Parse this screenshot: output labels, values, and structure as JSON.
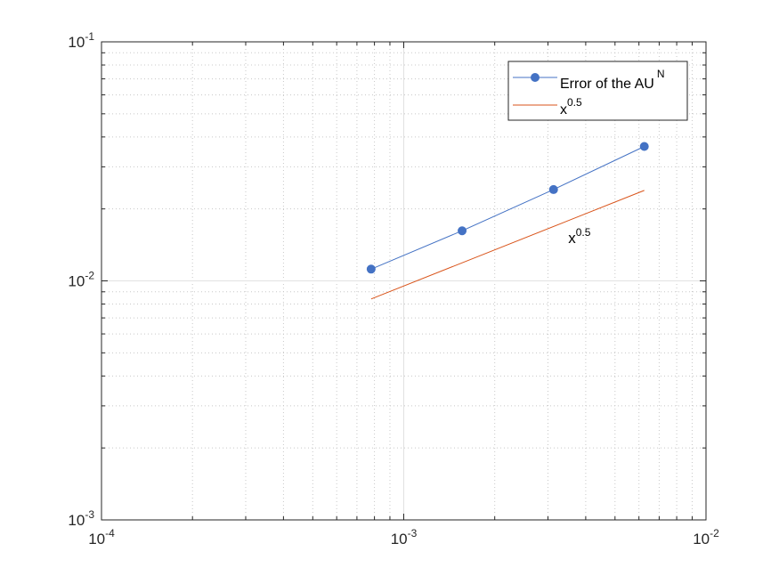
{
  "chart_data": {
    "type": "line",
    "title": "",
    "xlabel": "",
    "ylabel": "",
    "x_scale": "log",
    "y_scale": "log",
    "xlim": [
      0.0001,
      0.01
    ],
    "ylim": [
      0.001,
      0.1
    ],
    "grid": true,
    "minor_grid": true,
    "legend_position": "top-right",
    "x_ticks": [
      {
        "base": "10",
        "exp": "-4",
        "value": 0.0001
      },
      {
        "base": "10",
        "exp": "-3",
        "value": 0.001
      },
      {
        "base": "10",
        "exp": "-2",
        "value": 0.01
      }
    ],
    "y_ticks": [
      {
        "base": "10",
        "exp": "-3",
        "value": 0.001
      },
      {
        "base": "10",
        "exp": "-2",
        "value": 0.01
      },
      {
        "base": "10",
        "exp": "-1",
        "value": 0.1
      }
    ],
    "series": [
      {
        "name": "Error of the AU",
        "name_superscript": "N",
        "color": "#4472C4",
        "marker": "circle",
        "x": [
          0.00078,
          0.00156,
          0.00313,
          0.00625
        ],
        "y": [
          0.0112,
          0.0162,
          0.0241,
          0.0365
        ]
      },
      {
        "name": "x",
        "name_superscript": "0.5",
        "color": "#D95319",
        "marker": "none",
        "x": [
          0.00078,
          0.00625
        ],
        "y": [
          0.0084,
          0.0239
        ]
      }
    ],
    "annotations": [
      {
        "text": "x",
        "superscript": "0.5",
        "x": 0.0035,
        "y": 0.0144
      }
    ]
  }
}
